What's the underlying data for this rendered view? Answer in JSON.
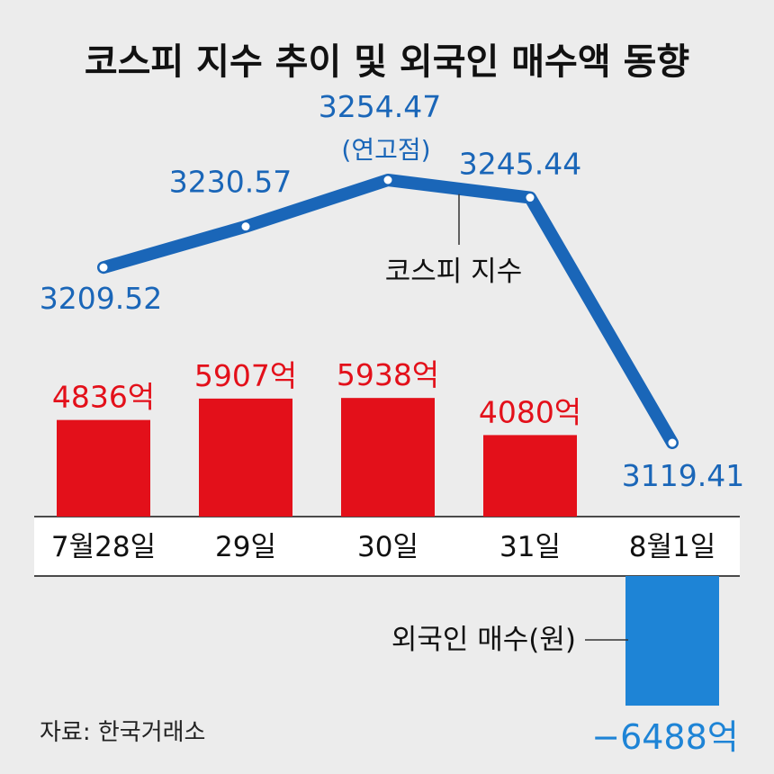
{
  "title": "코스피 지수 추이 및 외국인 매수액 동향",
  "source": "자료: 한국거래소",
  "colors": {
    "line": "#1a66b8",
    "bar_positive": "#e3101a",
    "bar_negative": "#1e84d6",
    "background": "#ececec",
    "axis_band": "#ffffff"
  },
  "chart_data": {
    "type": "bar+line",
    "title": "코스피 지수 추이 및 외국인 매수액 동향",
    "categories": [
      "7월28일",
      "29일",
      "30일",
      "31일",
      "8월1일"
    ],
    "series": [
      {
        "name": "코스피 지수",
        "type": "line",
        "values": [
          3209.52,
          3230.57,
          3254.47,
          3245.44,
          3119.41
        ],
        "labels": [
          "3209.52",
          "3230.57",
          "3254.47",
          "3245.44",
          "3119.41"
        ],
        "annotations": [
          {
            "category": "30일",
            "text": "(연고점)"
          }
        ]
      },
      {
        "name": "외국인 매수(원)",
        "type": "bar",
        "unit": "억",
        "values": [
          4836,
          5907,
          5938,
          4080,
          -6488
        ],
        "labels": [
          "4836억",
          "5907억",
          "5938억",
          "4080억",
          "−6488억"
        ]
      }
    ],
    "grid": false,
    "legend": "none"
  }
}
